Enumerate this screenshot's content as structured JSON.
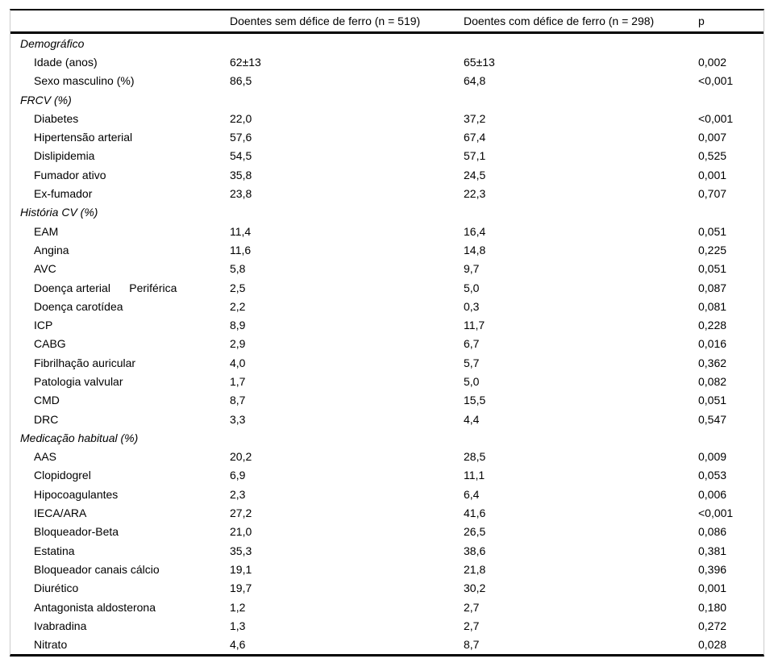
{
  "table": {
    "header": {
      "label": "",
      "col2": "Doentes sem défice de ferro (n = 519)",
      "col3": "Doentes com défice de ferro (n = 298)",
      "p": "p"
    },
    "rows": [
      {
        "type": "section",
        "label": "Demográfico"
      },
      {
        "type": "item",
        "label": "Idade (anos)",
        "v1": "62±13",
        "v2": "65±13",
        "p": "0,002"
      },
      {
        "type": "item",
        "label": "Sexo masculino (%)",
        "v1": "86,5",
        "v2": "64,8",
        "p": "<0,001"
      },
      {
        "type": "section",
        "label": "FRCV (%)"
      },
      {
        "type": "item",
        "label": "Diabetes",
        "v1": "22,0",
        "v2": "37,2",
        "p": "<0,001"
      },
      {
        "type": "item",
        "label": "Hipertensão arterial",
        "v1": "57,6",
        "v2": "67,4",
        "p": "0,007"
      },
      {
        "type": "item",
        "label": "Dislipidemia",
        "v1": "54,5",
        "v2": "57,1",
        "p": "0,525"
      },
      {
        "type": "item",
        "label": "Fumador ativo",
        "v1": "35,8",
        "v2": "24,5",
        "p": "0,001"
      },
      {
        "type": "item",
        "label": "Ex-fumador",
        "v1": "23,8",
        "v2": "22,3",
        "p": "0,707"
      },
      {
        "type": "section",
        "label": "História CV (%)"
      },
      {
        "type": "item",
        "label": "EAM",
        "v1": "11,4",
        "v2": "16,4",
        "p": "0,051"
      },
      {
        "type": "item",
        "label": "Angina",
        "v1": "11,6",
        "v2": "14,8",
        "p": "0,225"
      },
      {
        "type": "item",
        "label": "AVC",
        "v1": "5,8",
        "v2": "9,7",
        "p": "0,051"
      },
      {
        "type": "item",
        "label": "Doença arterial      Periférica",
        "v1": "2,5",
        "v2": "5,0",
        "p": "0,087"
      },
      {
        "type": "item",
        "label": "Doença carotídea",
        "v1": "2,2",
        "v2": "0,3",
        "p": "0,081"
      },
      {
        "type": "item",
        "label": "ICP",
        "v1": "8,9",
        "v2": "11,7",
        "p": "0,228"
      },
      {
        "type": "item",
        "label": "CABG",
        "v1": "2,9",
        "v2": "6,7",
        "p": "0,016"
      },
      {
        "type": "item",
        "label": "Fibrilhação auricular",
        "v1": "4,0",
        "v2": "5,7",
        "p": "0,362"
      },
      {
        "type": "item",
        "label": "Patologia valvular",
        "v1": "1,7",
        "v2": "5,0",
        "p": "0,082"
      },
      {
        "type": "item",
        "label": "CMD",
        "v1": "8,7",
        "v2": "15,5",
        "p": "0,051"
      },
      {
        "type": "item",
        "label": "DRC",
        "v1": "3,3",
        "v2": "4,4",
        "p": "0,547"
      },
      {
        "type": "section",
        "label": "Medicação habitual (%)"
      },
      {
        "type": "item",
        "label": "AAS",
        "v1": "20,2",
        "v2": "28,5",
        "p": "0,009"
      },
      {
        "type": "item",
        "label": "Clopidogrel",
        "v1": "6,9",
        "v2": "11,1",
        "p": "0,053"
      },
      {
        "type": "item",
        "label": "Hipocoagulantes",
        "v1": "2,3",
        "v2": "6,4",
        "p": "0,006"
      },
      {
        "type": "item",
        "label": "IECA/ARA",
        "v1": "27,2",
        "v2": "41,6",
        "p": "<0,001"
      },
      {
        "type": "item",
        "label": "Bloqueador-Beta",
        "v1": "21,0",
        "v2": "26,5",
        "p": "0,086"
      },
      {
        "type": "item",
        "label": "Estatina",
        "v1": "35,3",
        "v2": "38,6",
        "p": "0,381"
      },
      {
        "type": "item",
        "label": "Bloqueador canais cálcio",
        "v1": "19,1",
        "v2": "21,8",
        "p": "0,396"
      },
      {
        "type": "item",
        "label": "Diurético",
        "v1": "19,7",
        "v2": "30,2",
        "p": "0,001"
      },
      {
        "type": "item",
        "label": "Antagonista aldosterona",
        "v1": "1,2",
        "v2": "2,7",
        "p": "0,180"
      },
      {
        "type": "item",
        "label": "Ivabradina",
        "v1": "1,3",
        "v2": "2,7",
        "p": "0,272"
      },
      {
        "type": "item",
        "label": "Nitrato",
        "v1": "4,6",
        "v2": "8,7",
        "p": "0,028"
      }
    ]
  },
  "colors": {
    "rule": "#000000",
    "side_border": "#cccccc",
    "text": "#000000",
    "background": "#ffffff"
  }
}
